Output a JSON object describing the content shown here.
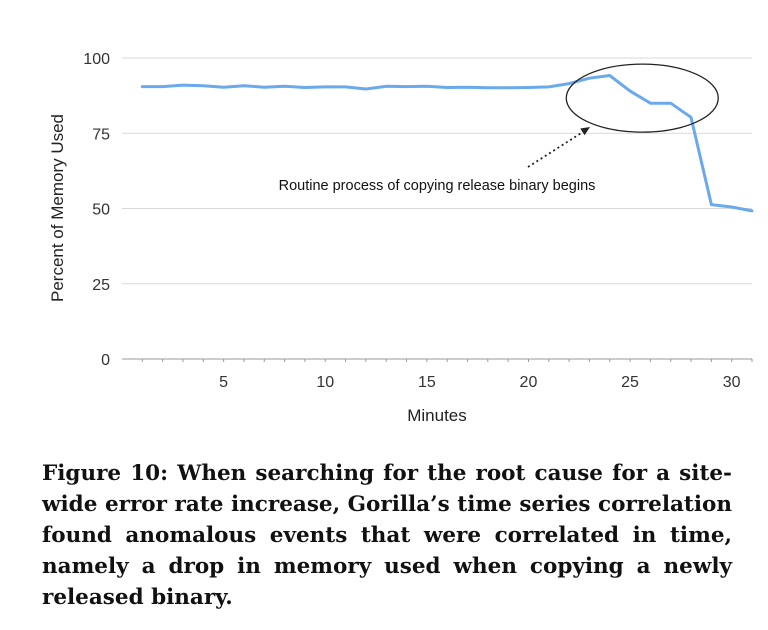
{
  "chart_data": {
    "type": "line",
    "title": "",
    "xlabel": "Minutes",
    "ylabel": "Percent of Memory Used",
    "xlim": [
      0,
      31
    ],
    "ylim": [
      0,
      100
    ],
    "x_ticks": [
      5,
      10,
      15,
      20,
      25,
      30
    ],
    "y_ticks": [
      0,
      25,
      50,
      75,
      100
    ],
    "grid": "horizontal",
    "legend": "none",
    "line_color": "#6aa9ec",
    "series": [
      {
        "x": [
          1,
          2,
          3,
          4,
          5,
          6,
          7,
          8,
          9,
          10,
          11,
          12,
          13,
          14,
          15,
          16,
          17,
          18,
          19,
          20,
          21,
          22,
          23,
          24,
          25,
          26,
          27,
          28,
          29,
          30,
          31
        ],
        "values": [
          90.5,
          90.5,
          91,
          90.8,
          90.3,
          90.8,
          90.3,
          90.6,
          90.2,
          90.4,
          90.4,
          89.7,
          90.6,
          90.5,
          90.6,
          90.2,
          90.3,
          90.1,
          90.1,
          90.2,
          90.4,
          91.5,
          93.3,
          94.2,
          89,
          85,
          85,
          80.3,
          51.3,
          50.5,
          49.2
        ]
      }
    ],
    "annotation": {
      "text": "Routine process of copying release binary begins",
      "target_x": 25.6,
      "target_y": 87
    }
  },
  "caption": {
    "label": "Figure 10:",
    "text": "When searching for the root cause for a site-wide error rate increase, Gorilla’s time series correlation found anomalous events that were correlated in time, namely a drop in memory used when copying a newly released binary."
  }
}
